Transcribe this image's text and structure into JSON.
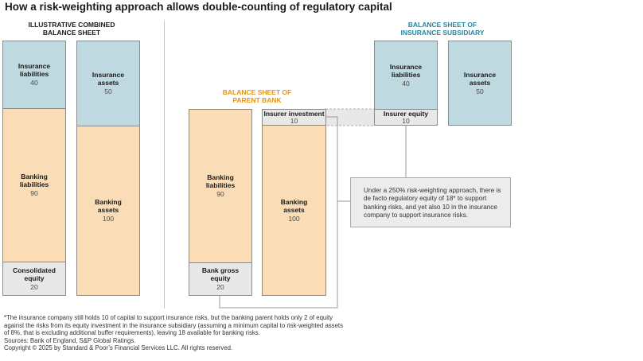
{
  "title": "How a risk-weighting approach allows double-counting of regulatory capital",
  "combined": {
    "title": "ILLUSTRATIVE COMBINED BALANCE SHEET",
    "insurance_liabilities": {
      "label": "Insurance liabilities",
      "value": "40"
    },
    "banking_liabilities": {
      "label": "Banking liabilities",
      "value": "90"
    },
    "consolidated_equity": {
      "label": "Consolidated equity",
      "value": "20"
    },
    "insurance_assets": {
      "label": "Insurance assets",
      "value": "50"
    },
    "banking_assets": {
      "label": "Banking assets",
      "value": "100"
    }
  },
  "parent": {
    "title": "BALANCE SHEET OF PARENT BANK",
    "banking_liabilities": {
      "label": "Banking liabilities",
      "value": "90"
    },
    "bank_gross_equity": {
      "label": "Bank gross equity",
      "value": "20"
    },
    "insurer_investment": {
      "label": "Insurer investment",
      "value": "10"
    },
    "banking_assets": {
      "label": "Banking assets",
      "value": "100"
    }
  },
  "subsidiary": {
    "title": "BALANCE SHEET OF INSURANCE SUBSIDIARY",
    "insurance_liabilities": {
      "label": "Insurance liabilities",
      "value": "40"
    },
    "insurer_equity": {
      "label": "Insurer equity",
      "value": "10"
    },
    "insurance_assets": {
      "label": "Insurance assets",
      "value": "50"
    }
  },
  "note": "Under a 250% risk-weighting approach, there is de facto regulatory equity of 18* to support banking risks, and yet also 10 in the insurance company to support insurance risks.",
  "footer": {
    "line1": "*The insurance company still holds 10 of capital to support insurance risks, but the banking parent holds only 2 of equity",
    "line2": "against the risks from its equity investment in the insurance subsidiary (assuming a minimum capital to risk-weighted assets",
    "line3": "of 8%, that is excluding additional buffer requirements), leaving 18 available for banking risks.",
    "sources": "Sources: Bank of England, S&P Global Ratings.",
    "copyright": "Copyright © 2025 by Standard & Poor’s Financial Services LLC. All rights reserved."
  },
  "colors": {
    "insurance_blue": "#bfd9e1",
    "banking_orange": "#fadcb7",
    "equity_grey": "#e8e8e8",
    "parent_title_orange": "#e0961a",
    "subsidiary_title_blue": "#1e8aa6"
  }
}
